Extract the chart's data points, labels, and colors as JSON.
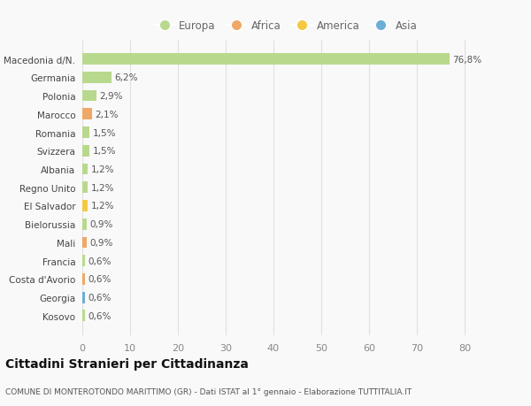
{
  "categories": [
    "Kosovo",
    "Georgia",
    "Costa d'Avorio",
    "Francia",
    "Mali",
    "Bielorussia",
    "El Salvador",
    "Regno Unito",
    "Albania",
    "Svizzera",
    "Romania",
    "Marocco",
    "Polonia",
    "Germania",
    "Macedonia d/N."
  ],
  "values": [
    0.6,
    0.6,
    0.6,
    0.6,
    0.9,
    0.9,
    1.2,
    1.2,
    1.2,
    1.5,
    1.5,
    2.1,
    2.9,
    6.2,
    76.8
  ],
  "labels": [
    "0,6%",
    "0,6%",
    "0,6%",
    "0,6%",
    "0,9%",
    "0,9%",
    "1,2%",
    "1,2%",
    "1,2%",
    "1,5%",
    "1,5%",
    "2,1%",
    "2,9%",
    "6,2%",
    "76,8%"
  ],
  "colors": [
    "#b8d98d",
    "#6baed6",
    "#f0a868",
    "#b8d98d",
    "#f0a868",
    "#b8d98d",
    "#f5c842",
    "#b8d98d",
    "#b8d98d",
    "#b8d98d",
    "#b8d98d",
    "#f0a868",
    "#b8d98d",
    "#b8d98d",
    "#b8d98d"
  ],
  "legend": [
    {
      "label": "Europa",
      "color": "#b8d98d"
    },
    {
      "label": "Africa",
      "color": "#f0a868"
    },
    {
      "label": "America",
      "color": "#f5c842"
    },
    {
      "label": "Asia",
      "color": "#6baed6"
    }
  ],
  "title": "Cittadini Stranieri per Cittadinanza",
  "subtitle": "COMUNE DI MONTEROTONDO MARITTIMO (GR) - Dati ISTAT al 1° gennaio - Elaborazione TUTTITALIA.IT",
  "xlim": [
    0,
    85
  ],
  "xticks": [
    0,
    10,
    20,
    30,
    40,
    50,
    60,
    70,
    80
  ],
  "background_color": "#f9f9f9",
  "grid_color": "#e0e0e0"
}
